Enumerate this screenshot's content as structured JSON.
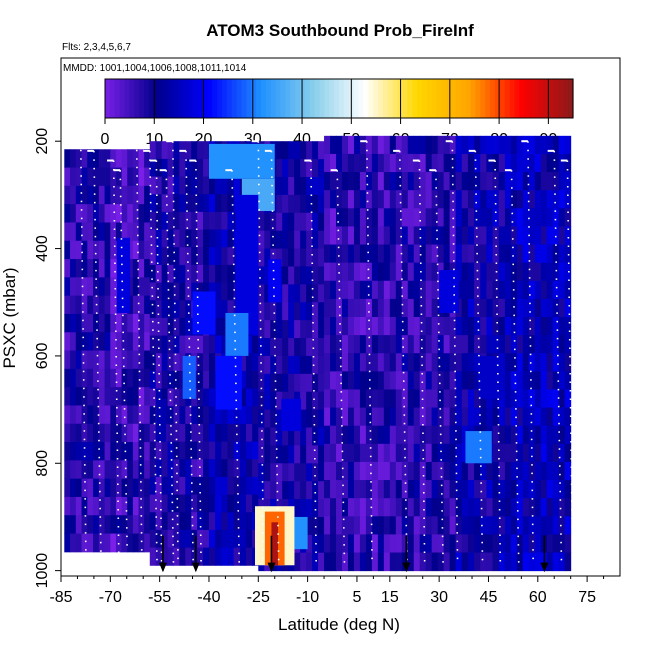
{
  "chart_data": {
    "type": "heatmap",
    "title": "ATOM3 Southbound Prob_FireInf",
    "annotations": [
      "Flts: 2,3,4,5,6,7",
      "MMDD: 1001,1004,1006,1008,1011,1014"
    ],
    "xlabel": "Latitude (deg N)",
    "ylabel": "PSXC (mbar)",
    "x_ticks": [
      -85,
      -70,
      -55,
      -40,
      -25,
      -10,
      5,
      15,
      30,
      45,
      60,
      75
    ],
    "y_ticks": [
      200,
      400,
      600,
      800,
      1000
    ],
    "xlim": [
      -85,
      85
    ],
    "ylim": [
      1010,
      45
    ],
    "y_reversed": true,
    "colorbar": {
      "ticks": [
        0,
        10,
        20,
        30,
        40,
        50,
        60,
        70,
        80,
        90
      ],
      "range": [
        0,
        95
      ],
      "colors": [
        "#7a1fe8",
        "#00008b",
        "#0000ff",
        "#1e90ff",
        "#87ceeb",
        "#ffffff",
        "#ffd700",
        "#ffa500",
        "#ff0000",
        "#8b1a1a"
      ]
    },
    "arrows_lat": [
      -54,
      -44,
      -21,
      20,
      62
    ],
    "profile_lats": [
      -79,
      -75,
      -69,
      -67,
      -62,
      -58,
      -56,
      -53,
      -51,
      -47,
      -44,
      -33,
      -25,
      -21,
      -9,
      -1,
      8,
      18,
      24,
      29,
      34,
      41,
      47,
      52,
      57,
      65,
      69
    ],
    "background_cells": [
      {
        "lat": [
          -84,
          -70
        ],
        "p": [
          215,
          965
        ],
        "v": 8
      },
      {
        "lat": [
          -70,
          -58
        ],
        "p": [
          215,
          965
        ],
        "v": 6
      },
      {
        "lat": [
          -58,
          -40
        ],
        "p": [
          200,
          990
        ],
        "v": 9
      },
      {
        "lat": [
          -40,
          -25
        ],
        "p": [
          200,
          990
        ],
        "v": 12
      },
      {
        "lat": [
          -25,
          -5
        ],
        "p": [
          200,
          1000
        ],
        "v": 10
      },
      {
        "lat": [
          -5,
          15
        ],
        "p": [
          190,
          1000
        ],
        "v": 7
      },
      {
        "lat": [
          15,
          35
        ],
        "p": [
          190,
          1000
        ],
        "v": 8
      },
      {
        "lat": [
          35,
          50
        ],
        "p": [
          190,
          1000
        ],
        "v": 12
      },
      {
        "lat": [
          50,
          70
        ],
        "p": [
          190,
          1000
        ],
        "v": 14
      }
    ],
    "hotspots": [
      {
        "lat": [
          -68,
          -64
        ],
        "p": [
          380,
          520
        ],
        "v": 18
      },
      {
        "lat": [
          -56,
          -53
        ],
        "p": [
          680,
          760
        ],
        "v": 14
      },
      {
        "lat": [
          -40,
          -20
        ],
        "p": [
          205,
          270
        ],
        "v": 32
      },
      {
        "lat": [
          -30,
          -20
        ],
        "p": [
          270,
          330
        ],
        "v": 36
      },
      {
        "lat": [
          -32,
          -25
        ],
        "p": [
          300,
          560
        ],
        "v": 18
      },
      {
        "lat": [
          -48,
          -44
        ],
        "p": [
          600,
          680
        ],
        "v": 28
      },
      {
        "lat": [
          -45,
          -38
        ],
        "p": [
          480,
          560
        ],
        "v": 22
      },
      {
        "lat": [
          -35,
          -28
        ],
        "p": [
          520,
          600
        ],
        "v": 30
      },
      {
        "lat": [
          -22,
          -18
        ],
        "p": [
          420,
          500
        ],
        "v": 20
      },
      {
        "lat": [
          -38,
          -30
        ],
        "p": [
          600,
          700
        ],
        "v": 22
      },
      {
        "lat": [
          -18,
          -12
        ],
        "p": [
          680,
          740
        ],
        "v": 18
      },
      {
        "lat": [
          38,
          46
        ],
        "p": [
          740,
          800
        ],
        "v": 30
      },
      {
        "lat": [
          42,
          50
        ],
        "p": [
          600,
          680
        ],
        "v": 16
      },
      {
        "lat": [
          30,
          36
        ],
        "p": [
          440,
          520
        ],
        "v": 18
      },
      {
        "lat": [
          -26,
          -14
        ],
        "p": [
          880,
          990
        ],
        "v": 55
      },
      {
        "lat": [
          -23,
          -17
        ],
        "p": [
          890,
          990
        ],
        "v": 78
      },
      {
        "lat": [
          -21,
          -19
        ],
        "p": [
          910,
          990
        ],
        "v": 92
      },
      {
        "lat": [
          -14,
          -10
        ],
        "p": [
          900,
          960
        ],
        "v": 32
      }
    ]
  }
}
